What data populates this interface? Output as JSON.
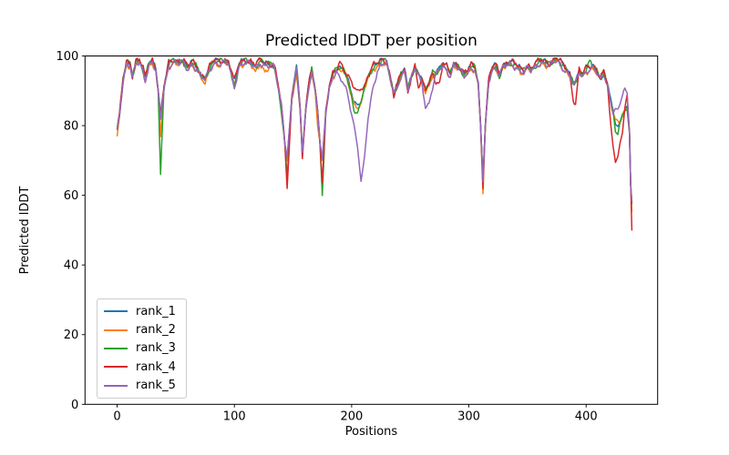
{
  "chart_data": {
    "type": "line",
    "title": "Predicted lDDT per position",
    "xlabel": "Positions",
    "ylabel": "Predicted lDDT",
    "xlim": [
      -27.4,
      461
    ],
    "ylim": [
      0,
      100
    ],
    "xticks": [
      0,
      100,
      200,
      300,
      400
    ],
    "yticks": [
      0,
      20,
      40,
      60,
      80,
      100
    ],
    "grid": false,
    "legend_position": "lower left",
    "n_points": 440,
    "x_keypoints": [
      0,
      2,
      5,
      8,
      11,
      13,
      16,
      19,
      22,
      24,
      27,
      30,
      33,
      35,
      37,
      40,
      44,
      48,
      52,
      56,
      60,
      64,
      68,
      72,
      75,
      79,
      83,
      87,
      91,
      95,
      100,
      104,
      109,
      114,
      118,
      122,
      126,
      130,
      134,
      137,
      140,
      143,
      145,
      149,
      153,
      156,
      158,
      161,
      164,
      166,
      169,
      171,
      173,
      175,
      178,
      181,
      184,
      187,
      190,
      193,
      196,
      199,
      202,
      205,
      208,
      211,
      214,
      218,
      222,
      226,
      230,
      233,
      236,
      239,
      242,
      245,
      248,
      251,
      254,
      257,
      260,
      263,
      266,
      269,
      272,
      275,
      278,
      281,
      284,
      287,
      290,
      293,
      296,
      299,
      302,
      305,
      308,
      310,
      312,
      314,
      317,
      320,
      323,
      326,
      329,
      332,
      335,
      338,
      341,
      344,
      347,
      350,
      353,
      356,
      359,
      362,
      365,
      368,
      371,
      374,
      377,
      380,
      383,
      386,
      389,
      391,
      394,
      397,
      400,
      403,
      406,
      409,
      412,
      415,
      418,
      421,
      423,
      425,
      427,
      429,
      431,
      433,
      435,
      437,
      438,
      439
    ],
    "base_values": [
      79,
      83,
      93,
      98,
      97.5,
      94,
      98,
      98.5,
      96,
      93.5,
      97.5,
      98.5,
      96,
      90,
      82,
      91,
      97.5,
      98.5,
      98,
      98.5,
      96.5,
      98,
      96.5,
      94,
      93.5,
      96.5,
      98.5,
      98,
      98.5,
      98,
      92.5,
      97.5,
      98.5,
      98,
      97,
      98.5,
      97.5,
      97.5,
      97,
      92,
      86,
      75,
      70,
      88,
      96.5,
      85,
      71.5,
      85,
      93,
      96,
      90,
      84,
      75,
      70,
      84,
      91,
      94.5,
      96,
      96.5,
      96,
      94,
      90,
      86.5,
      85.5,
      86.5,
      91,
      94,
      96.5,
      97.5,
      98.5,
      98,
      93.5,
      89.5,
      91.5,
      94.5,
      96,
      90.5,
      94,
      96.5,
      95,
      92.5,
      90,
      92,
      95,
      95,
      96.5,
      97.5,
      96.5,
      94.5,
      97.5,
      97,
      96,
      94.5,
      95.5,
      97,
      96.5,
      92,
      80,
      64,
      80,
      93,
      96.5,
      97,
      95,
      97,
      97.5,
      98,
      97.5,
      97,
      96,
      95.5,
      97,
      96,
      97,
      98,
      98.5,
      98,
      97.5,
      98,
      99,
      98.5,
      97,
      96,
      94.5,
      92,
      92.5,
      95.5,
      94.5,
      96,
      96.5,
      97,
      95.5,
      93.5,
      95,
      92,
      87,
      84,
      80.5,
      79.5,
      81,
      83,
      84.5,
      85,
      78,
      63,
      57
    ],
    "series": [
      {
        "name": "rank_1",
        "color": "#1f77b4",
        "offset": 0.35,
        "overrides": {
          "37": 83,
          "145": 70.5,
          "153": 98,
          "158": 72,
          "175": 70.5,
          "312": 64.5,
          "439": 57.5
        }
      },
      {
        "name": "rank_2",
        "color": "#ff7f0e",
        "offset": -0.5,
        "overrides": {
          "0": 77,
          "37": 77,
          "75": 92,
          "118": 95.5,
          "126": 96,
          "145": 70,
          "153": 94.5,
          "166": 95,
          "171": 80,
          "312": 60.5,
          "425": 82,
          "427": 81.5,
          "439": 55.5
        }
      },
      {
        "name": "rank_3",
        "color": "#2ca02c",
        "offset": 0.15,
        "overrides": {
          "37": 66,
          "100": 91.5,
          "140": 84,
          "145": 65,
          "175": 60,
          "202": 84,
          "205": 83.5,
          "326": 92.5,
          "403": 98,
          "425": 78,
          "427": 77.5,
          "439": 58
        }
      },
      {
        "name": "rank_4",
        "color": "#d62728",
        "offset": 0.5,
        "overrides": {
          "145": 62,
          "158": 70.5,
          "175": 63.5,
          "190": 98,
          "199": 92.5,
          "202": 90.5,
          "205": 89.5,
          "208": 90.5,
          "236": 88,
          "248": 89,
          "257": 90.5,
          "272": 92,
          "275": 91.5,
          "312": 62,
          "389": 87,
          "391": 86,
          "421": 80,
          "423": 74,
          "425": 69.5,
          "427": 71,
          "429": 75,
          "431": 78,
          "433": 85,
          "435": 88,
          "439": 50
        }
      },
      {
        "name": "rank_5",
        "color": "#9467bd",
        "offset": -0.35,
        "overrides": {
          "100": 91,
          "145": 71,
          "158": 72.5,
          "175": 70.5,
          "190": 93.5,
          "193": 92.5,
          "196": 90,
          "199": 85,
          "202": 80.5,
          "205": 74,
          "208": 64,
          "211": 71,
          "214": 82,
          "218": 91,
          "222": 96,
          "263": 85.5,
          "266": 86.5,
          "269": 91,
          "425": 85,
          "427": 84.5,
          "429": 86.5,
          "431": 89,
          "433": 90.5,
          "435": 89.5,
          "439": 58.5
        }
      }
    ]
  }
}
